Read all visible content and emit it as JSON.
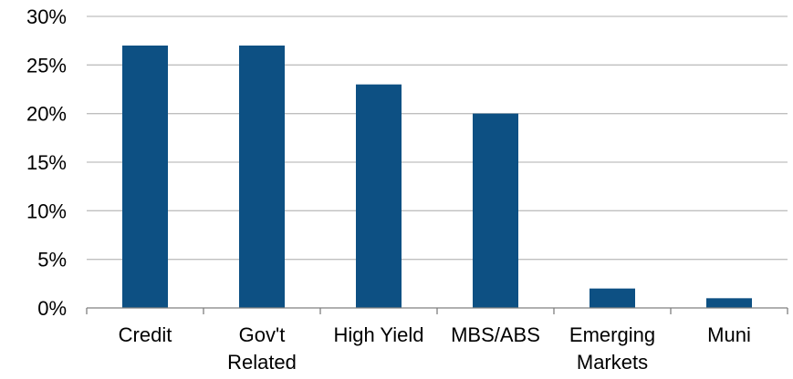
{
  "chart_data": {
    "type": "bar",
    "title": "",
    "xlabel": "",
    "ylabel": "",
    "categories": [
      [
        "Credit"
      ],
      [
        "Gov't",
        "Related"
      ],
      [
        "High Yield"
      ],
      [
        "MBS/ABS"
      ],
      [
        "Emerging",
        "Markets"
      ],
      [
        "Muni"
      ]
    ],
    "values": [
      27,
      27,
      23,
      20,
      2,
      1
    ],
    "ylim": [
      0,
      30
    ],
    "yticks": [
      0,
      5,
      10,
      15,
      20,
      25,
      30
    ],
    "ytick_labels": [
      "0%",
      "5%",
      "10%",
      "15%",
      "20%",
      "25%",
      "30%"
    ],
    "grid": true,
    "legend": "none",
    "colors": {
      "bar": "#0D5083",
      "grid": "#BFBFBF",
      "axis": "#808080"
    }
  }
}
